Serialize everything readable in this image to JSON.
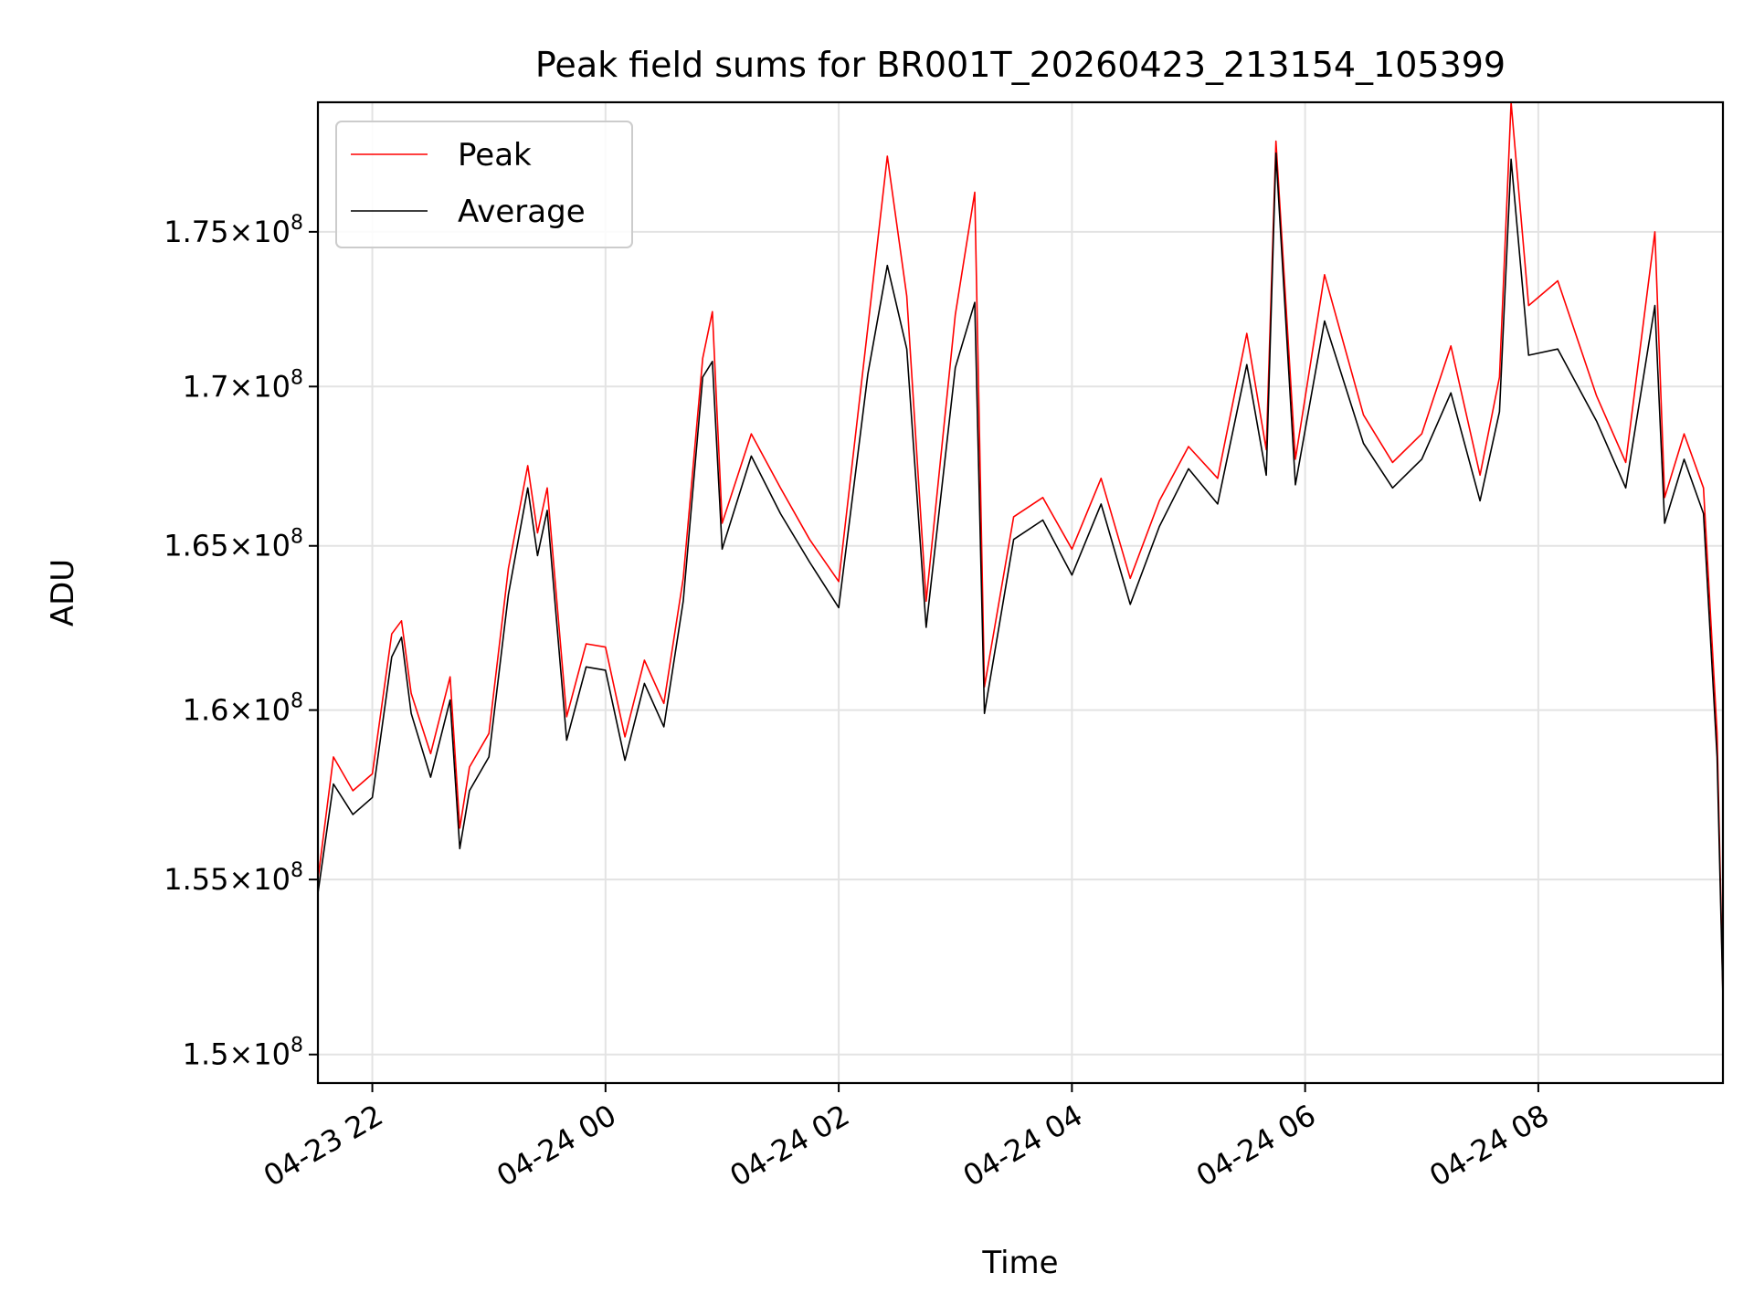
{
  "chart_data": {
    "type": "line",
    "title": "Peak field sums for BR001T_20260423_213154_105399",
    "xlabel": "Time",
    "ylabel": "ADU",
    "xlim": [
      "2026-04-23 21:32",
      "2026-04-24 09:35"
    ],
    "ylim": [
      149200000,
      179300000
    ],
    "y_scale": "log",
    "grid": true,
    "legend_position": "top-left",
    "x_ticks": [
      {
        "t": "2026-04-23 22:00",
        "label": "04-23 22"
      },
      {
        "t": "2026-04-24 00:00",
        "label": "04-24 00"
      },
      {
        "t": "2026-04-24 02:00",
        "label": "04-24 02"
      },
      {
        "t": "2026-04-24 04:00",
        "label": "04-24 04"
      },
      {
        "t": "2026-04-24 06:00",
        "label": "04-24 06"
      },
      {
        "t": "2026-04-24 08:00",
        "label": "04-24 08"
      }
    ],
    "y_ticks": [
      {
        "v": 150000000,
        "mant": "1.5",
        "exp": "8"
      },
      {
        "v": 155000000,
        "mant": "1.55",
        "exp": "8"
      },
      {
        "v": 160000000,
        "mant": "1.6",
        "exp": "8"
      },
      {
        "v": 165000000,
        "mant": "1.65",
        "exp": "8"
      },
      {
        "v": 170000000,
        "mant": "1.7",
        "exp": "8"
      },
      {
        "v": 175000000,
        "mant": "1.75",
        "exp": "8"
      }
    ],
    "colors": {
      "Peak": "#ff0000",
      "Average": "#000000"
    },
    "series": [
      {
        "name": "Peak",
        "x": [
          "2026-04-23 21:32",
          "2026-04-23 21:40",
          "2026-04-23 21:50",
          "2026-04-23 22:00",
          "2026-04-23 22:10",
          "2026-04-23 22:15",
          "2026-04-23 22:20",
          "2026-04-23 22:30",
          "2026-04-23 22:40",
          "2026-04-23 22:45",
          "2026-04-23 22:50",
          "2026-04-23 23:00",
          "2026-04-23 23:10",
          "2026-04-23 23:20",
          "2026-04-23 23:25",
          "2026-04-23 23:30",
          "2026-04-23 23:40",
          "2026-04-23 23:50",
          "2026-04-24 00:00",
          "2026-04-24 00:10",
          "2026-04-24 00:20",
          "2026-04-24 00:30",
          "2026-04-24 00:40",
          "2026-04-24 00:50",
          "2026-04-24 00:55",
          "2026-04-24 01:00",
          "2026-04-24 01:15",
          "2026-04-24 01:30",
          "2026-04-24 01:45",
          "2026-04-24 02:00",
          "2026-04-24 02:15",
          "2026-04-24 02:25",
          "2026-04-24 02:35",
          "2026-04-24 02:45",
          "2026-04-24 03:00",
          "2026-04-24 03:10",
          "2026-04-24 03:15",
          "2026-04-24 03:30",
          "2026-04-24 03:45",
          "2026-04-24 04:00",
          "2026-04-24 04:15",
          "2026-04-24 04:30",
          "2026-04-24 04:45",
          "2026-04-24 05:00",
          "2026-04-24 05:15",
          "2026-04-24 05:30",
          "2026-04-24 05:40",
          "2026-04-24 05:45",
          "2026-04-24 05:55",
          "2026-04-24 06:10",
          "2026-04-24 06:30",
          "2026-04-24 06:45",
          "2026-04-24 07:00",
          "2026-04-24 07:15",
          "2026-04-24 07:30",
          "2026-04-24 07:40",
          "2026-04-24 07:46",
          "2026-04-24 07:55",
          "2026-04-24 08:10",
          "2026-04-24 08:30",
          "2026-04-24 08:45",
          "2026-04-24 09:00",
          "2026-04-24 09:05",
          "2026-04-24 09:15",
          "2026-04-24 09:25",
          "2026-04-24 09:32",
          "2026-04-24 09:35"
        ],
        "values": [
          155000000,
          158600000,
          157600000,
          158100000,
          162300000,
          162700000,
          160500000,
          158700000,
          161000000,
          156500000,
          158300000,
          159300000,
          164300000,
          167500000,
          165400000,
          166800000,
          159800000,
          162000000,
          161900000,
          159200000,
          161500000,
          160200000,
          164000000,
          170900000,
          172400000,
          165700000,
          168500000,
          166800000,
          165200000,
          163900000,
          171900000,
          177500000,
          172900000,
          163300000,
          172300000,
          176300000,
          160700000,
          165900000,
          166500000,
          164900000,
          167100000,
          164000000,
          166400000,
          168100000,
          167100000,
          171700000,
          168000000,
          178000000,
          167700000,
          173600000,
          169100000,
          167600000,
          168500000,
          171300000,
          167200000,
          170300000,
          179300000,
          172600000,
          173400000,
          169700000,
          167600000,
          175000000,
          166500000,
          168500000,
          166800000,
          159300000,
          151700000
        ]
      },
      {
        "name": "Average",
        "x": [
          "2026-04-23 21:32",
          "2026-04-23 21:40",
          "2026-04-23 21:50",
          "2026-04-23 22:00",
          "2026-04-23 22:10",
          "2026-04-23 22:15",
          "2026-04-23 22:20",
          "2026-04-23 22:30",
          "2026-04-23 22:40",
          "2026-04-23 22:45",
          "2026-04-23 22:50",
          "2026-04-23 23:00",
          "2026-04-23 23:10",
          "2026-04-23 23:20",
          "2026-04-23 23:25",
          "2026-04-23 23:30",
          "2026-04-23 23:40",
          "2026-04-23 23:50",
          "2026-04-24 00:00",
          "2026-04-24 00:10",
          "2026-04-24 00:20",
          "2026-04-24 00:30",
          "2026-04-24 00:40",
          "2026-04-24 00:50",
          "2026-04-24 00:55",
          "2026-04-24 01:00",
          "2026-04-24 01:15",
          "2026-04-24 01:30",
          "2026-04-24 01:45",
          "2026-04-24 02:00",
          "2026-04-24 02:15",
          "2026-04-24 02:25",
          "2026-04-24 02:35",
          "2026-04-24 02:45",
          "2026-04-24 03:00",
          "2026-04-24 03:10",
          "2026-04-24 03:15",
          "2026-04-24 03:30",
          "2026-04-24 03:45",
          "2026-04-24 04:00",
          "2026-04-24 04:15",
          "2026-04-24 04:30",
          "2026-04-24 04:45",
          "2026-04-24 05:00",
          "2026-04-24 05:15",
          "2026-04-24 05:30",
          "2026-04-24 05:40",
          "2026-04-24 05:45",
          "2026-04-24 05:55",
          "2026-04-24 06:10",
          "2026-04-24 06:30",
          "2026-04-24 06:45",
          "2026-04-24 07:00",
          "2026-04-24 07:15",
          "2026-04-24 07:30",
          "2026-04-24 07:40",
          "2026-04-24 07:46",
          "2026-04-24 07:55",
          "2026-04-24 08:10",
          "2026-04-24 08:30",
          "2026-04-24 08:45",
          "2026-04-24 09:00",
          "2026-04-24 09:05",
          "2026-04-24 09:15",
          "2026-04-24 09:25",
          "2026-04-24 09:32",
          "2026-04-24 09:35"
        ],
        "values": [
          154600000,
          157800000,
          156900000,
          157400000,
          161600000,
          162200000,
          159900000,
          158000000,
          160300000,
          155900000,
          157600000,
          158600000,
          163500000,
          166800000,
          164700000,
          166100000,
          159100000,
          161300000,
          161200000,
          158500000,
          160800000,
          159500000,
          163300000,
          170300000,
          170800000,
          164900000,
          167800000,
          166000000,
          164500000,
          163100000,
          170400000,
          173900000,
          171200000,
          162500000,
          170600000,
          172700000,
          159900000,
          165200000,
          165800000,
          164100000,
          166300000,
          163200000,
          165600000,
          167400000,
          166300000,
          170700000,
          167200000,
          177600000,
          166900000,
          172100000,
          168200000,
          166800000,
          167700000,
          169800000,
          166400000,
          169200000,
          177400000,
          171000000,
          171200000,
          168900000,
          166800000,
          172600000,
          165700000,
          167700000,
          166000000,
          158600000,
          151600000
        ]
      }
    ]
  }
}
